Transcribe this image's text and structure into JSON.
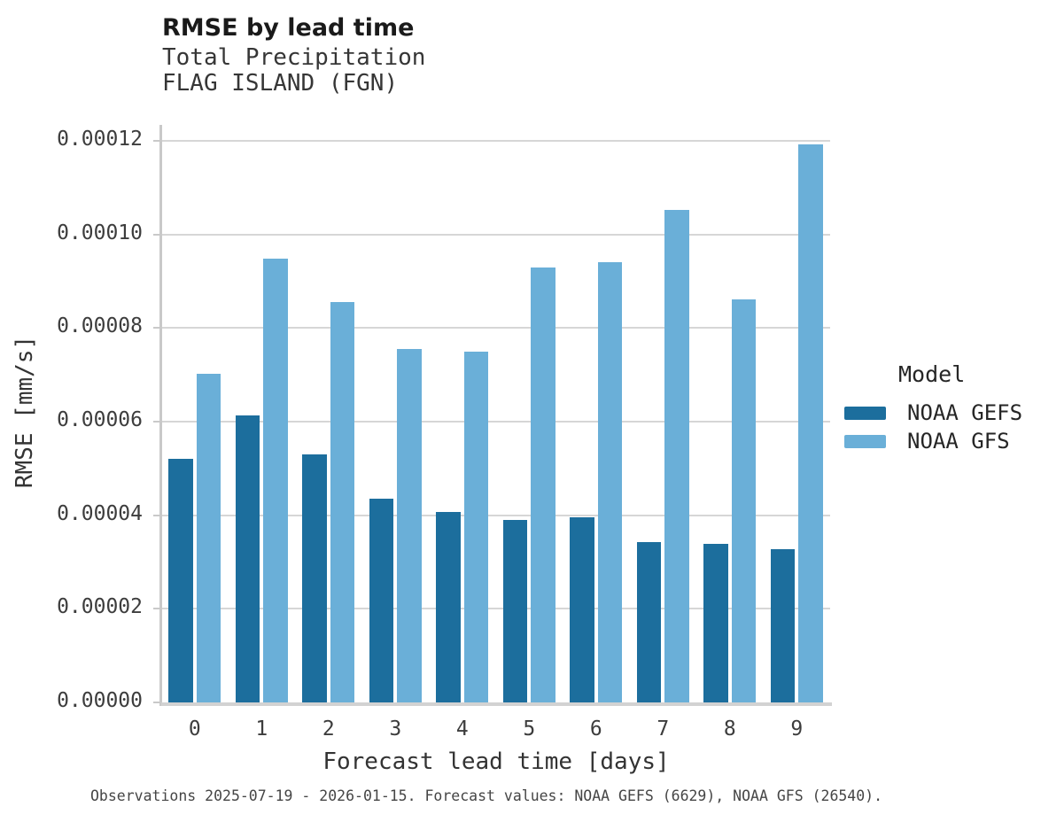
{
  "header": {
    "title": "RMSE by lead time",
    "subtitle1": "Total Precipitation",
    "subtitle2": "FLAG ISLAND (FGN)"
  },
  "footer": {
    "text": "Observations 2025-07-19 - 2026-01-15. Forecast values: NOAA GEFS (6629), NOAA GFS (26540)."
  },
  "chart_data": {
    "type": "bar",
    "title": "RMSE by lead time",
    "subtitle": [
      "Total Precipitation",
      "FLAG ISLAND (FGN)"
    ],
    "categories": [
      "0",
      "1",
      "2",
      "3",
      "4",
      "5",
      "6",
      "7",
      "8",
      "9"
    ],
    "series": [
      {
        "name": "NOAA GEFS",
        "color": "#1c6e9d",
        "values": [
          5.2e-05,
          6.13e-05,
          5.3e-05,
          4.35e-05,
          4.06e-05,
          3.9e-05,
          3.95e-05,
          3.43e-05,
          3.39e-05,
          3.27e-05
        ]
      },
      {
        "name": "NOAA GFS",
        "color": "#6aafd8",
        "values": [
          7.03e-05,
          9.49e-05,
          8.56e-05,
          7.56e-05,
          7.5e-05,
          9.29e-05,
          9.41e-05,
          0.0001052,
          8.62e-05,
          0.0001193
        ]
      }
    ],
    "xlabel": "Forecast lead time [days]",
    "ylabel": "RMSE [mm/s]",
    "ylim": [
      0,
      0.00012
    ],
    "yticks": [
      0.0,
      2e-05,
      4e-05,
      6e-05,
      8e-05,
      0.0001,
      0.00012
    ],
    "ytick_labels": [
      "0.00000",
      "0.00002",
      "0.00004",
      "0.00006",
      "0.00008",
      "0.00010",
      "0.00012"
    ],
    "grid": true,
    "legend_title": "Model",
    "legend_position": "right"
  },
  "style": {
    "grid_color": "#d6d6d6",
    "axis_color": "#c9c9c9",
    "baseline_color": "#d2d2d2",
    "text_color": "#3d3d3d"
  }
}
